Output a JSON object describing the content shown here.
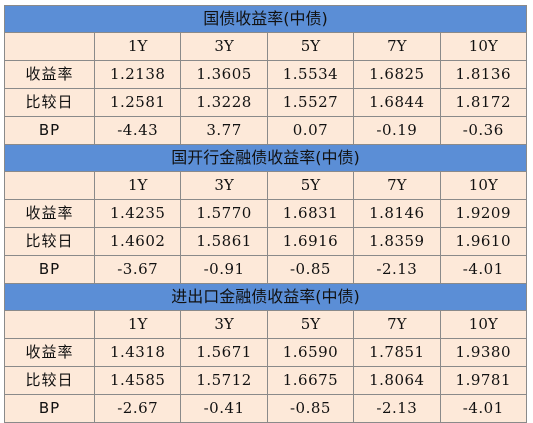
{
  "sections": [
    {
      "title": "国债收益率(中债)",
      "columns": [
        "1Y",
        "3Y",
        "5Y",
        "7Y",
        "10Y"
      ],
      "rows": [
        {
          "label": "收益率",
          "values": [
            "1.2138",
            "1.3605",
            "1.5534",
            "1.6825",
            "1.8136"
          ]
        },
        {
          "label": "比较日",
          "values": [
            "1.2581",
            "1.3228",
            "1.5527",
            "1.6844",
            "1.8172"
          ]
        },
        {
          "label": "BP",
          "values": [
            "-4.43",
            "3.77",
            "0.07",
            "-0.19",
            "-0.36"
          ]
        }
      ]
    },
    {
      "title": "国开行金融债收益率(中债)",
      "columns": [
        "1Y",
        "3Y",
        "5Y",
        "7Y",
        "10Y"
      ],
      "rows": [
        {
          "label": "收益率",
          "values": [
            "1.4235",
            "1.5770",
            "1.6831",
            "1.8146",
            "1.9209"
          ]
        },
        {
          "label": "比较日",
          "values": [
            "1.4602",
            "1.5861",
            "1.6916",
            "1.8359",
            "1.9610"
          ]
        },
        {
          "label": "BP",
          "values": [
            "-3.67",
            "-0.91",
            "-0.85",
            "-2.13",
            "-4.01"
          ]
        }
      ]
    },
    {
      "title": "进出口金融债收益率(中债)",
      "columns": [
        "1Y",
        "3Y",
        "5Y",
        "7Y",
        "10Y"
      ],
      "rows": [
        {
          "label": "收益率",
          "values": [
            "1.4318",
            "1.5671",
            "1.6590",
            "1.7851",
            "1.9380"
          ]
        },
        {
          "label": "比较日",
          "values": [
            "1.4585",
            "1.5712",
            "1.6675",
            "1.8064",
            "1.9781"
          ]
        },
        {
          "label": "BP",
          "values": [
            "-2.67",
            "-0.41",
            "-0.85",
            "-2.13",
            "-4.01"
          ]
        }
      ]
    }
  ]
}
